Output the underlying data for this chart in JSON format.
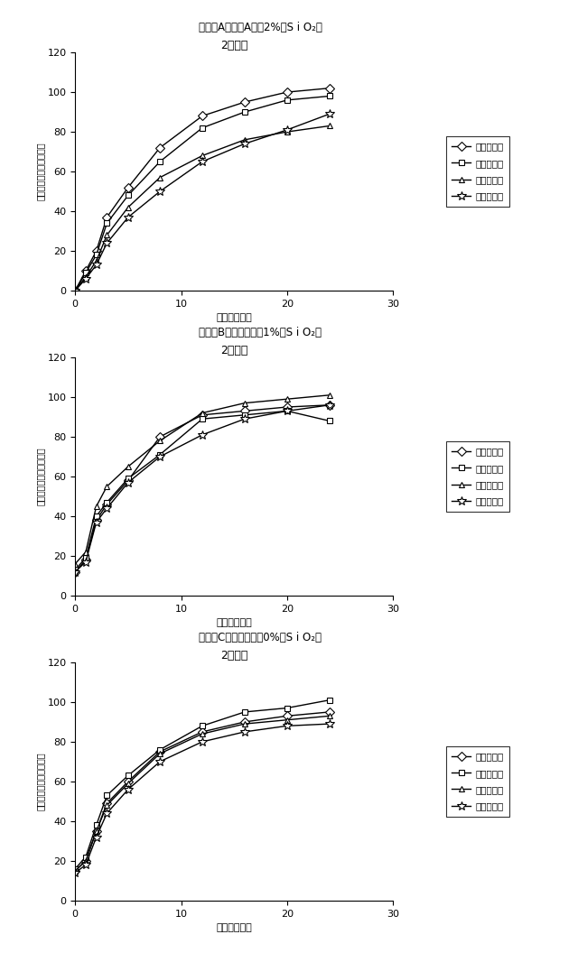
{
  "panel_labels": [
    "パネルA（参照A：～2%　S i O₂）",
    "パネルB（製劑９：～1%　S i O₂）",
    "パネルC（製劑１０、0%　S i O₂）"
  ],
  "chart_title": "2型溶解",
  "xlabel": "時間（時間）",
  "ylabel": "放出された薬物の累積％",
  "legend_labels": [
    "カプセル１",
    "カプセル２",
    "カプセル３",
    "カプセル４"
  ],
  "xlim": [
    0,
    30
  ],
  "ylim": [
    0,
    120
  ],
  "xticks": [
    0,
    10,
    20,
    30
  ],
  "yticks": [
    0,
    20,
    40,
    60,
    80,
    100,
    120
  ],
  "panels": [
    {
      "series": [
        {
          "x": [
            0,
            1,
            2,
            3,
            5,
            8,
            12,
            16,
            20,
            24
          ],
          "y": [
            0,
            10,
            20,
            37,
            52,
            72,
            88,
            95,
            100,
            102
          ]
        },
        {
          "x": [
            0,
            1,
            2,
            3,
            5,
            8,
            12,
            16,
            20,
            24
          ],
          "y": [
            0,
            9,
            18,
            34,
            48,
            65,
            82,
            90,
            96,
            98
          ]
        },
        {
          "x": [
            0,
            1,
            2,
            3,
            5,
            8,
            12,
            16,
            20,
            24
          ],
          "y": [
            0,
            7,
            15,
            28,
            42,
            57,
            68,
            76,
            80,
            83
          ]
        },
        {
          "x": [
            0,
            1,
            2,
            3,
            5,
            8,
            12,
            16,
            20,
            24
          ],
          "y": [
            0,
            6,
            13,
            24,
            37,
            50,
            65,
            74,
            81,
            89
          ]
        }
      ]
    },
    {
      "series": [
        {
          "x": [
            0,
            1,
            2,
            3,
            5,
            8,
            12,
            16,
            20,
            24
          ],
          "y": [
            12,
            18,
            38,
            46,
            58,
            80,
            91,
            93,
            95,
            96
          ]
        },
        {
          "x": [
            0,
            1,
            2,
            3,
            5,
            8,
            12,
            16,
            20,
            24
          ],
          "y": [
            13,
            19,
            40,
            47,
            59,
            71,
            89,
            91,
            93,
            88
          ]
        },
        {
          "x": [
            0,
            1,
            2,
            3,
            5,
            8,
            12,
            16,
            20,
            24
          ],
          "y": [
            16,
            22,
            45,
            55,
            65,
            78,
            92,
            97,
            99,
            101
          ]
        },
        {
          "x": [
            0,
            1,
            2,
            3,
            5,
            8,
            12,
            16,
            20,
            24
          ],
          "y": [
            12,
            17,
            37,
            44,
            57,
            70,
            81,
            89,
            93,
            96
          ]
        }
      ]
    },
    {
      "series": [
        {
          "x": [
            0,
            1,
            2,
            3,
            5,
            8,
            12,
            16,
            20,
            24
          ],
          "y": [
            15,
            20,
            35,
            49,
            60,
            75,
            85,
            90,
            93,
            95
          ]
        },
        {
          "x": [
            0,
            1,
            2,
            3,
            5,
            8,
            12,
            16,
            20,
            24
          ],
          "y": [
            16,
            22,
            38,
            53,
            63,
            76,
            88,
            95,
            97,
            101
          ]
        },
        {
          "x": [
            0,
            1,
            2,
            3,
            5,
            8,
            12,
            16,
            20,
            24
          ],
          "y": [
            15,
            20,
            35,
            48,
            59,
            74,
            84,
            89,
            91,
            93
          ]
        },
        {
          "x": [
            0,
            1,
            2,
            3,
            5,
            8,
            12,
            16,
            20,
            24
          ],
          "y": [
            14,
            18,
            32,
            44,
            56,
            70,
            80,
            85,
            88,
            89
          ]
        }
      ]
    }
  ],
  "markers": [
    "D",
    "s",
    "^",
    "*"
  ],
  "marker_sizes": [
    5,
    5,
    5,
    7
  ],
  "line_color": "#000000",
  "bg_color": "#ffffff"
}
